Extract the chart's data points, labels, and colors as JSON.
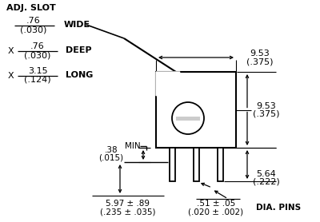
{
  "bg_color": "#ffffff",
  "line_color": "#000000",
  "adj_slot_label": "ADJ. SLOT",
  "wide_label": "WIDE",
  "deep_label": "DEEP",
  "long_label": "LONG",
  "min_label": "MIN.",
  "dia_pins_label": "DIA. PINS",
  "x_label": "X",
  "dim1_top": ".76",
  "dim1_bot": "(.030)",
  "dim2_top": ".76",
  "dim2_bot": "(.030)",
  "dim3_top": "3.15",
  "dim3_bot": "(.124)",
  "dim4_top": ".38",
  "dim4_bot": "(.015)",
  "dim_9531_top": "9.53",
  "dim_9531_bot": "(.375)",
  "dim_9532_top": "9.53",
  "dim_9532_bot": "(.375)",
  "dim_564_top": "5.64",
  "dim_564_bot": "(.222)",
  "dim_597_top": "5.97 ± .89",
  "dim_597_bot": "(.235 ± .035)",
  "dim_051_top": ".51 ± .05",
  "dim_051_bot": "(.020 ± .002)"
}
